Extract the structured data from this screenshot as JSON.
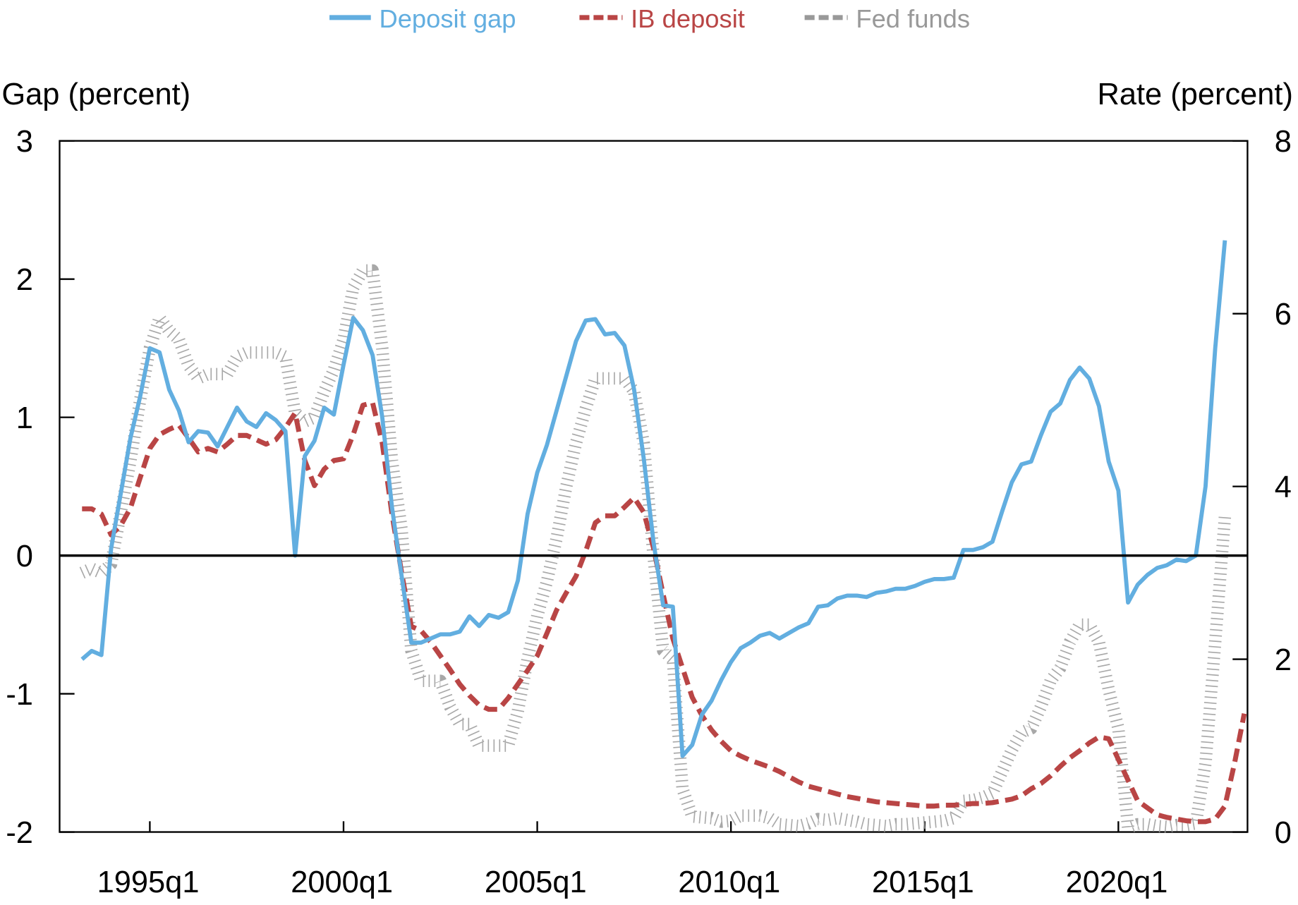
{
  "chart_data": {
    "type": "line",
    "title": "",
    "left_axis": {
      "label": "Gap (percent)",
      "ylim": [
        -2,
        3
      ],
      "ticks": [
        "3",
        "2",
        "1",
        "0",
        "-1",
        "-2"
      ],
      "tick_values": [
        3,
        2,
        1,
        0,
        -1,
        -2
      ]
    },
    "right_axis": {
      "label": "Rate (percent)",
      "ylim": [
        0,
        8
      ],
      "ticks": [
        "8",
        "6",
        "4",
        "2",
        "0"
      ],
      "tick_values": [
        8,
        6,
        4,
        2,
        0
      ]
    },
    "x_axis": {
      "label": "",
      "start": "1993q2",
      "end": "2022q4",
      "ticks": [
        "1995q1",
        "2000q1",
        "2005q1",
        "2010q1",
        "2015q1",
        "2020q1"
      ]
    },
    "grid": false,
    "reference_line": {
      "axis": "left",
      "value": 0
    },
    "legend": {
      "placement": "top",
      "entries": [
        "Deposit gap",
        "IB deposit",
        "Fed funds"
      ]
    },
    "series": [
      {
        "name": "Deposit gap",
        "axis": "left",
        "style": "solid",
        "color": "#62aee0",
        "start": "1993q2",
        "frequency": "quarterly",
        "values": [
          -0.75,
          -0.69,
          -0.72,
          0.05,
          0.45,
          0.85,
          1.15,
          1.5,
          1.47,
          1.2,
          1.05,
          0.82,
          0.9,
          0.89,
          0.79,
          0.93,
          1.07,
          0.97,
          0.93,
          1.03,
          0.98,
          0.9,
          0.0,
          0.72,
          0.83,
          1.07,
          1.02,
          1.38,
          1.72,
          1.63,
          1.45,
          1.0,
          0.35,
          -0.15,
          -0.63,
          -0.63,
          -0.6,
          -0.57,
          -0.57,
          -0.55,
          -0.44,
          -0.51,
          -0.43,
          -0.45,
          -0.41,
          -0.18,
          0.3,
          0.6,
          0.8,
          1.05,
          1.3,
          1.55,
          1.7,
          1.71,
          1.6,
          1.61,
          1.52,
          1.2,
          0.7,
          0.1,
          -0.36,
          -0.37,
          -1.45,
          -1.37,
          -1.15,
          -1.05,
          -0.9,
          -0.77,
          -0.67,
          -0.63,
          -0.58,
          -0.56,
          -0.6,
          -0.56,
          -0.52,
          -0.49,
          -0.37,
          -0.36,
          -0.31,
          -0.29,
          -0.29,
          -0.3,
          -0.27,
          -0.26,
          -0.24,
          -0.24,
          -0.22,
          -0.19,
          -0.17,
          -0.17,
          -0.16,
          0.04,
          0.04,
          0.06,
          0.1,
          0.32,
          0.53,
          0.66,
          0.68,
          0.87,
          1.04,
          1.1,
          1.27,
          1.36,
          1.28,
          1.08,
          0.68,
          0.47,
          -0.34,
          -0.21,
          -0.14,
          -0.09,
          -0.07,
          -0.03,
          -0.04,
          0.0,
          0.5,
          1.5,
          2.28
        ]
      },
      {
        "name": "IB deposit",
        "axis": "right",
        "style": "dashed",
        "color": "#b94545",
        "start": "1993q2",
        "frequency": "quarterly",
        "values": [
          3.74,
          3.74,
          3.68,
          3.44,
          3.55,
          3.75,
          4.1,
          4.44,
          4.6,
          4.66,
          4.71,
          4.56,
          4.4,
          4.44,
          4.4,
          4.49,
          4.59,
          4.59,
          4.54,
          4.49,
          4.54,
          4.68,
          4.85,
          4.3,
          4.01,
          4.2,
          4.3,
          4.32,
          4.6,
          4.94,
          4.97,
          4.5,
          3.68,
          3.0,
          2.38,
          2.33,
          2.2,
          2.04,
          1.88,
          1.71,
          1.58,
          1.47,
          1.42,
          1.42,
          1.55,
          1.71,
          1.87,
          2.04,
          2.3,
          2.57,
          2.77,
          2.96,
          3.25,
          3.58,
          3.66,
          3.66,
          3.76,
          3.87,
          3.7,
          3.29,
          2.75,
          2.24,
          1.9,
          1.56,
          1.35,
          1.18,
          1.05,
          0.94,
          0.88,
          0.83,
          0.79,
          0.75,
          0.7,
          0.64,
          0.58,
          0.53,
          0.5,
          0.47,
          0.44,
          0.41,
          0.39,
          0.37,
          0.35,
          0.34,
          0.33,
          0.32,
          0.31,
          0.3,
          0.3,
          0.31,
          0.31,
          0.32,
          0.33,
          0.33,
          0.34,
          0.36,
          0.38,
          0.42,
          0.5,
          0.56,
          0.65,
          0.76,
          0.86,
          0.94,
          1.03,
          1.1,
          1.08,
          0.84,
          0.6,
          0.36,
          0.28,
          0.2,
          0.17,
          0.15,
          0.13,
          0.12,
          0.12,
          0.15,
          0.3,
          0.8,
          1.37
        ]
      },
      {
        "name": "Fed funds",
        "axis": "right",
        "style": "dotted",
        "color": "#999999",
        "start": "1993q2",
        "frequency": "quarterly",
        "values": [
          3.0,
          3.05,
          3.0,
          3.1,
          3.7,
          4.3,
          5.0,
          5.6,
          5.95,
          5.8,
          5.7,
          5.4,
          5.25,
          5.3,
          5.3,
          5.3,
          5.5,
          5.55,
          5.55,
          5.55,
          5.55,
          5.5,
          4.85,
          4.75,
          4.8,
          5.1,
          5.35,
          5.7,
          6.3,
          6.5,
          6.5,
          5.6,
          4.3,
          3.5,
          2.1,
          1.75,
          1.75,
          1.75,
          1.45,
          1.25,
          1.25,
          1.0,
          1.0,
          1.0,
          1.0,
          1.4,
          2.0,
          2.5,
          2.9,
          3.4,
          4.0,
          4.5,
          4.9,
          5.25,
          5.25,
          5.25,
          5.25,
          5.1,
          4.5,
          3.2,
          2.1,
          2.0,
          0.5,
          0.18,
          0.17,
          0.16,
          0.12,
          0.13,
          0.19,
          0.19,
          0.19,
          0.16,
          0.09,
          0.08,
          0.07,
          0.1,
          0.15,
          0.14,
          0.16,
          0.14,
          0.12,
          0.09,
          0.08,
          0.07,
          0.09,
          0.09,
          0.1,
          0.11,
          0.12,
          0.13,
          0.16,
          0.36,
          0.37,
          0.4,
          0.45,
          0.7,
          0.95,
          1.15,
          1.2,
          1.45,
          1.75,
          1.9,
          2.2,
          2.4,
          2.4,
          2.2,
          1.65,
          1.2,
          0.05,
          0.09,
          0.09,
          0.07,
          0.06,
          0.08,
          0.08,
          0.1,
          0.8,
          2.2,
          3.65
        ]
      }
    ]
  }
}
